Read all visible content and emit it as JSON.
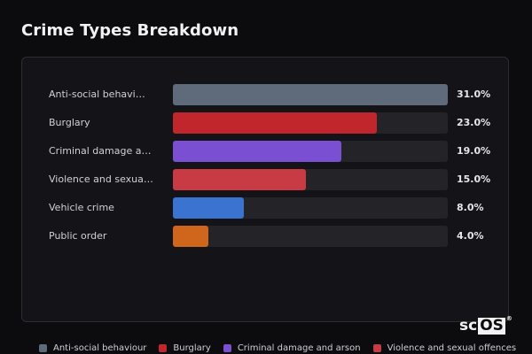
{
  "page": {
    "title": "Crime Types Breakdown",
    "watermark": {
      "prefix": "sc",
      "boxed": "OS",
      "mark": "®"
    }
  },
  "chart_data": {
    "type": "bar",
    "orientation": "horizontal",
    "title": "Crime Types Breakdown",
    "xlim": [
      0,
      31
    ],
    "grid": false,
    "legend": "bottom",
    "categories": [
      "Anti-social behavi…",
      "Burglary",
      "Criminal damage an…",
      "Violence and sexua…",
      "Vehicle crime",
      "Public order"
    ],
    "values": [
      31.0,
      23.0,
      19.0,
      15.0,
      8.0,
      4.0
    ],
    "value_labels": [
      "31.0%",
      "23.0%",
      "19.0%",
      "15.0%",
      "8.0%",
      "4.0%"
    ],
    "colors": [
      "#5f6b7a",
      "#c0262b",
      "#7b4fd1",
      "#c83a44",
      "#3a73d0",
      "#d0651c"
    ],
    "legend_entries": [
      {
        "label": "Anti-social behaviour",
        "color": "#5f6b7a"
      },
      {
        "label": "Burglary",
        "color": "#c0262b"
      },
      {
        "label": "Criminal damage and arson",
        "color": "#7b4fd1"
      },
      {
        "label": "Violence and sexual offences",
        "color": "#c83a44"
      }
    ]
  }
}
